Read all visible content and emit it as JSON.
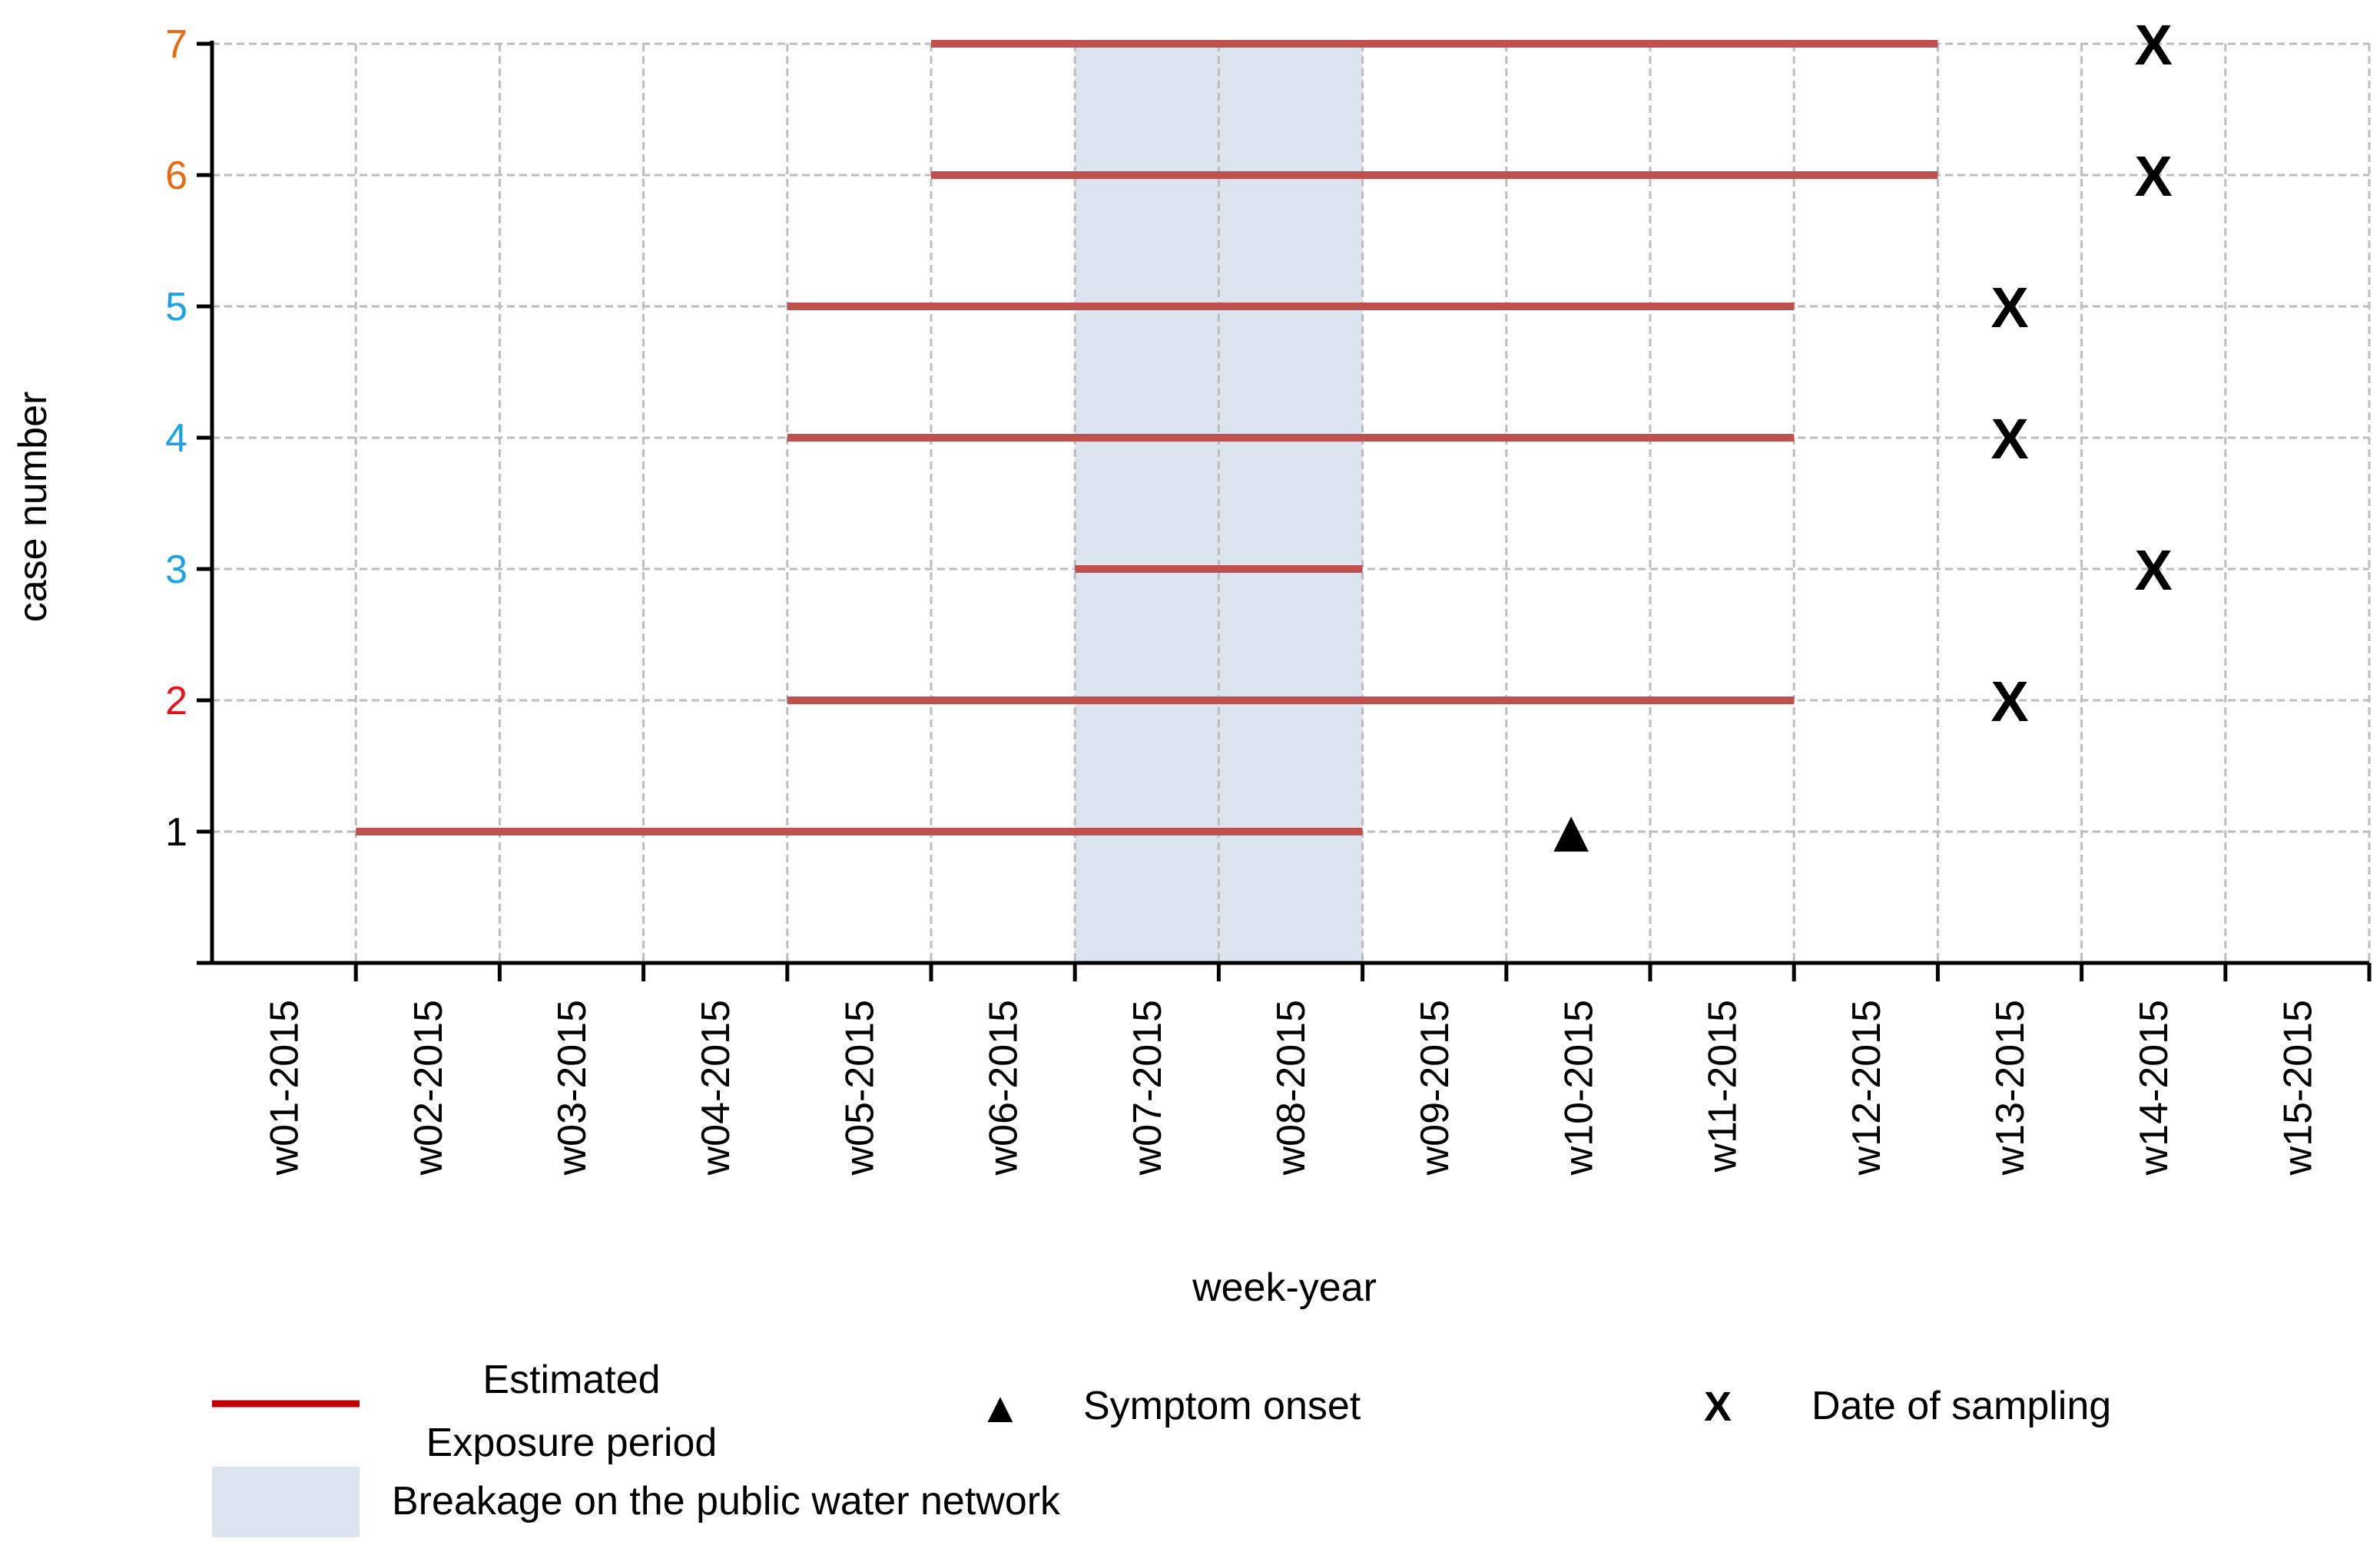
{
  "chart_data": {
    "type": "timeline",
    "title": "",
    "xlabel": "week-year",
    "ylabel": "case number",
    "categories": [
      "w01-2015",
      "w02-2015",
      "w03-2015",
      "w04-2015",
      "w05-2015",
      "w06-2015",
      "w07-2015",
      "w08-2015",
      "w09-2015",
      "w10-2015",
      "w11-2015",
      "w12-2015",
      "w13-2015",
      "w14-2015",
      "w15-2015"
    ],
    "y_ticks": [
      {
        "value": 1,
        "label": "1",
        "color": "#000000"
      },
      {
        "value": 2,
        "label": "2",
        "color": "#e8131b"
      },
      {
        "value": 3,
        "label": "3",
        "color": "#1aa3e8"
      },
      {
        "value": 4,
        "label": "4",
        "color": "#1aa3e8"
      },
      {
        "value": 5,
        "label": "5",
        "color": "#1aa3e8"
      },
      {
        "value": 6,
        "label": "6",
        "color": "#e86a10"
      },
      {
        "value": 7,
        "label": "7",
        "color": "#e86a10"
      }
    ],
    "ylim": [
      0,
      7
    ],
    "xlim_weeks": [
      0,
      15
    ],
    "grid": true,
    "shaded_region": {
      "name": "Breakage on the public water network",
      "start_week": 6,
      "end_week": 8,
      "color": "#dce4ef"
    },
    "exposure_color": "#c0504d",
    "exposure_periods": [
      {
        "case": 1,
        "start_week": 1,
        "end_week": 8
      },
      {
        "case": 2,
        "start_week": 4,
        "end_week": 11
      },
      {
        "case": 3,
        "start_week": 6,
        "end_week": 8
      },
      {
        "case": 4,
        "start_week": 4,
        "end_week": 11
      },
      {
        "case": 5,
        "start_week": 4,
        "end_week": 11
      },
      {
        "case": 6,
        "start_week": 5,
        "end_week": 12
      },
      {
        "case": 7,
        "start_week": 5,
        "end_week": 12
      }
    ],
    "symptom_onset": [
      {
        "case": 1,
        "week": 9.45,
        "marker": "▲"
      }
    ],
    "sampling_dates": [
      {
        "case": 2,
        "week": 12.5,
        "marker": "X"
      },
      {
        "case": 3,
        "week": 13.5,
        "marker": "X"
      },
      {
        "case": 4,
        "week": 12.5,
        "marker": "X"
      },
      {
        "case": 5,
        "week": 12.5,
        "marker": "X"
      },
      {
        "case": 6,
        "week": 13.5,
        "marker": "X"
      },
      {
        "case": 7,
        "week": 13.5,
        "marker": "X"
      }
    ],
    "legend": {
      "exposure_label_line1": "Estimated",
      "exposure_label_line2": "Exposure period",
      "exposure_color": "#c00000",
      "symptom_marker": "▲",
      "symptom_label": "Symptom onset",
      "sampling_marker": "X",
      "sampling_label": "Date of sampling",
      "breakage_label": "Breakage on the public water network",
      "breakage_color": "#dce4ef"
    }
  }
}
